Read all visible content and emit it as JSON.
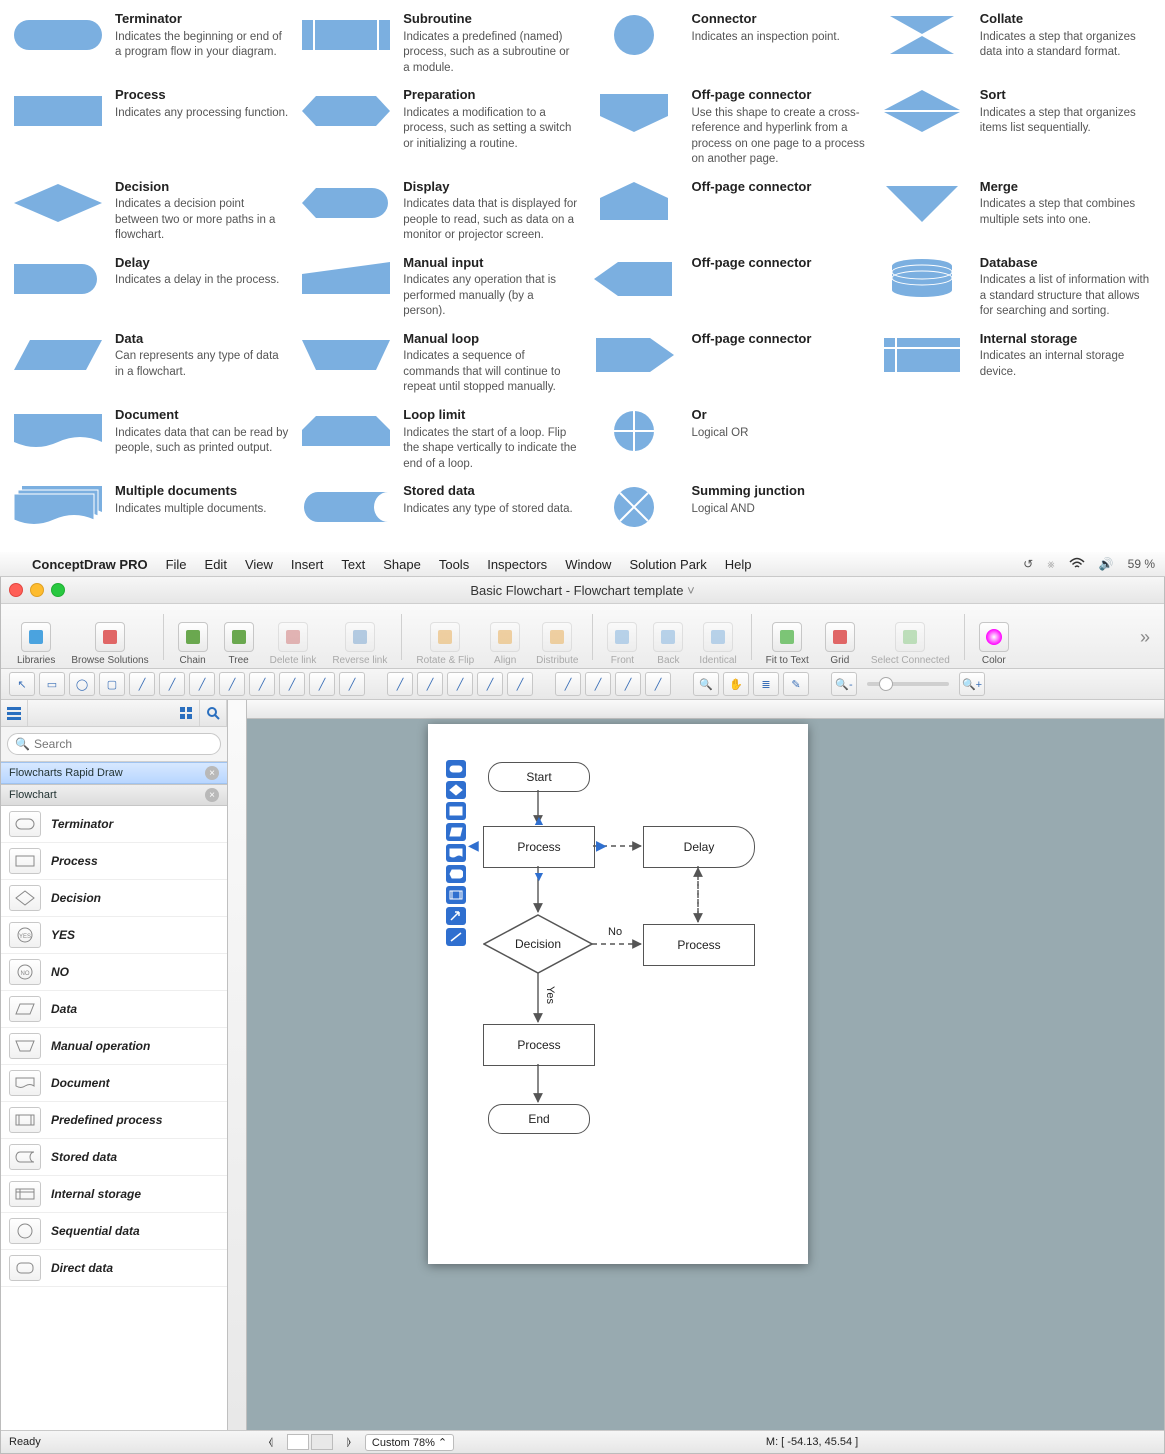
{
  "palette_fill": "#7bafe0",
  "legend": [
    [
      {
        "k": "terminator",
        "t": "Terminator",
        "d": "Indicates the beginning or end of a program flow in your diagram."
      },
      {
        "k": "process",
        "t": "Process",
        "d": "Indicates any processing function."
      },
      {
        "k": "decision",
        "t": "Decision",
        "d": "Indicates a decision point between two or more paths in a flowchart."
      },
      {
        "k": "delay",
        "t": "Delay",
        "d": "Indicates a delay in the process."
      },
      {
        "k": "data",
        "t": "Data",
        "d": "Can represents any type of data in a flowchart."
      },
      {
        "k": "document",
        "t": "Document",
        "d": "Indicates data that can be read by people, such as printed output."
      },
      {
        "k": "multidoc",
        "t": "Multiple documents",
        "d": "Indicates multiple documents."
      }
    ],
    [
      {
        "k": "subroutine",
        "t": "Subroutine",
        "d": "Indicates a predefined (named) process, such as a subroutine or a module."
      },
      {
        "k": "preparation",
        "t": "Preparation",
        "d": "Indicates a modification to a process, such as setting a switch or initializing a routine."
      },
      {
        "k": "display",
        "t": "Display",
        "d": "Indicates data that is displayed for people to read, such as data on a monitor or projector screen."
      },
      {
        "k": "manualinput",
        "t": "Manual input",
        "d": "Indicates any operation that is performed manually (by a person)."
      },
      {
        "k": "manualloop",
        "t": "Manual loop",
        "d": "Indicates a sequence of commands that will continue to repeat until stopped manually."
      },
      {
        "k": "looplimit",
        "t": "Loop limit",
        "d": "Indicates the start of a loop. Flip the shape vertically to indicate the end of a loop."
      },
      {
        "k": "storeddata",
        "t": "Stored data",
        "d": "Indicates any type of stored data."
      }
    ],
    [
      {
        "k": "connector",
        "t": "Connector",
        "d": "Indicates an inspection point."
      },
      {
        "k": "offpage1",
        "t": "Off-page connector",
        "d": "Use this shape to create a cross-reference and hyperlink from a process on one page to a process on another page."
      },
      {
        "k": "offpage2",
        "t": "Off-page connector",
        "d": ""
      },
      {
        "k": "offpage3",
        "t": "Off-page connector",
        "d": ""
      },
      {
        "k": "offpage4",
        "t": "Off-page connector",
        "d": ""
      },
      {
        "k": "or",
        "t": "Or",
        "d": "Logical OR"
      },
      {
        "k": "sumjunc",
        "t": "Summing junction",
        "d": "Logical AND"
      }
    ],
    [
      {
        "k": "collate",
        "t": "Collate",
        "d": "Indicates a step that organizes data into a standard format."
      },
      {
        "k": "sort",
        "t": "Sort",
        "d": "Indicates a step that organizes items list sequentially."
      },
      {
        "k": "merge",
        "t": "Merge",
        "d": "Indicates a step that combines multiple sets into one."
      },
      {
        "k": "database",
        "t": "Database",
        "d": "Indicates a list of information with a standard structure that allows for searching and sorting."
      },
      {
        "k": "internalstorage",
        "t": "Internal storage",
        "d": "Indicates an internal storage device."
      }
    ]
  ],
  "menubar": {
    "app": "ConceptDraw PRO",
    "items": [
      "File",
      "Edit",
      "View",
      "Insert",
      "Text",
      "Shape",
      "Tools",
      "Inspectors",
      "Window",
      "Solution Park",
      "Help"
    ],
    "battery": "59 %"
  },
  "window_title": "Basic Flowchart - Flowchart template",
  "ribbon": [
    {
      "k": "libraries",
      "l": "Libraries",
      "dis": false
    },
    {
      "k": "browse",
      "l": "Browse Solutions",
      "dis": false
    },
    {
      "sep": true
    },
    {
      "k": "chain",
      "l": "Chain",
      "dis": false
    },
    {
      "k": "tree",
      "l": "Tree",
      "dis": false
    },
    {
      "k": "deletelink",
      "l": "Delete link",
      "dis": true
    },
    {
      "k": "reverselink",
      "l": "Reverse link",
      "dis": true
    },
    {
      "sep": true
    },
    {
      "k": "rotateflip",
      "l": "Rotate & Flip",
      "dis": true
    },
    {
      "k": "align",
      "l": "Align",
      "dis": true
    },
    {
      "k": "distribute",
      "l": "Distribute",
      "dis": true
    },
    {
      "sep": true
    },
    {
      "k": "front",
      "l": "Front",
      "dis": true
    },
    {
      "k": "back",
      "l": "Back",
      "dis": true
    },
    {
      "k": "identical",
      "l": "Identical",
      "dis": true
    },
    {
      "sep": true
    },
    {
      "k": "fittotext",
      "l": "Fit to Text",
      "dis": false
    },
    {
      "k": "grid",
      "l": "Grid",
      "dis": false
    },
    {
      "k": "selectconn",
      "l": "Select Connected",
      "dis": true
    },
    {
      "sep": true
    },
    {
      "k": "color",
      "l": "Color",
      "dis": false
    }
  ],
  "sidebar": {
    "search_placeholder": "Search",
    "sections": [
      {
        "l": "Flowcharts Rapid Draw",
        "active": true
      },
      {
        "l": "Flowchart",
        "active": false
      }
    ],
    "shapes": [
      {
        "k": "terminator",
        "l": "Terminator"
      },
      {
        "k": "process",
        "l": "Process"
      },
      {
        "k": "decision",
        "l": "Decision"
      },
      {
        "k": "yes",
        "l": "YES"
      },
      {
        "k": "no",
        "l": "NO"
      },
      {
        "k": "data",
        "l": "Data"
      },
      {
        "k": "manualop",
        "l": "Manual operation"
      },
      {
        "k": "document",
        "l": "Document"
      },
      {
        "k": "predef",
        "l": "Predefined process"
      },
      {
        "k": "storeddata",
        "l": "Stored data"
      },
      {
        "k": "internalstorage",
        "l": "Internal storage"
      },
      {
        "k": "seqdata",
        "l": "Sequential data"
      },
      {
        "k": "directdata",
        "l": "Direct data"
      }
    ]
  },
  "canvas": {
    "nodes": {
      "start": {
        "l": "Start"
      },
      "p1": {
        "l": "Process"
      },
      "delay": {
        "l": "Delay"
      },
      "dec": {
        "l": "Decision"
      },
      "p2": {
        "l": "Process"
      },
      "p3": {
        "l": "Process"
      },
      "end": {
        "l": "End"
      }
    },
    "edge_labels": {
      "no": "No",
      "yes": "Yes"
    }
  },
  "status": {
    "ready": "Ready",
    "zoom": "Custom 78%",
    "mouse": "M: [ -54.13, 45.54 ]"
  }
}
